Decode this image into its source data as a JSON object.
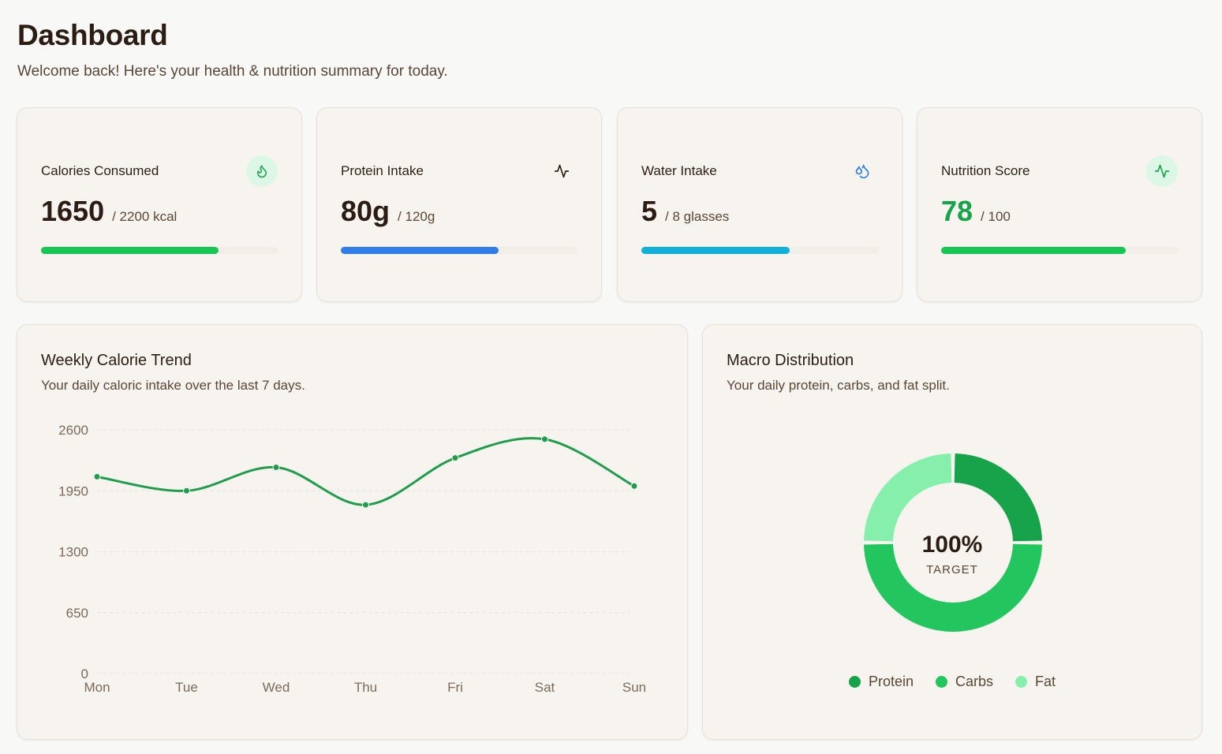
{
  "header": {
    "title": "Dashboard",
    "subtitle": "Welcome back! Here's your health & nutrition summary for today."
  },
  "stats": [
    {
      "label": "Calories Consumed",
      "value": "1650",
      "target": "/ 2200 kcal",
      "progress": 0.75,
      "color": "#16c653",
      "icon": "flame-icon",
      "icon_bg": "#dcf7e5",
      "icon_color": "#16a34a",
      "value_color": "#2b1d14"
    },
    {
      "label": "Protein Intake",
      "value": "80g",
      "target": "/ 120g",
      "progress": 0.667,
      "color": "#2f7de8",
      "icon": "activity-icon",
      "icon_bg": "#f7f4ef",
      "icon_color": "#2b1d14",
      "value_color": "#2b1d14"
    },
    {
      "label": "Water Intake",
      "value": "5",
      "target": "/ 8 glasses",
      "progress": 0.625,
      "color": "#0fb0d8",
      "icon": "droplets-icon",
      "icon_bg": "#f7f4ef",
      "icon_color": "#2f7de8",
      "value_color": "#2b1d14"
    },
    {
      "label": "Nutrition Score",
      "value": "78",
      "target": "/ 100",
      "progress": 0.78,
      "color": "#16c653",
      "icon": "activity-icon",
      "icon_bg": "#dcf7e5",
      "icon_color": "#16a34a",
      "value_color": "#16a34a"
    }
  ],
  "trend": {
    "title": "Weekly Calorie Trend",
    "subtitle": "Your daily caloric intake over the last 7 days."
  },
  "macro": {
    "title": "Macro Distribution",
    "subtitle": "Your daily protein, carbs, and fat split.",
    "center_value": "100%",
    "center_label": "TARGET",
    "segments": [
      {
        "name": "Protein",
        "value": 25,
        "color": "#16a34a"
      },
      {
        "name": "Carbs",
        "value": 50,
        "color": "#22c55e"
      },
      {
        "name": "Fat",
        "value": 25,
        "color": "#86efac"
      }
    ]
  },
  "chart_data": {
    "type": "line",
    "categories": [
      "Mon",
      "Tue",
      "Wed",
      "Thu",
      "Fri",
      "Sat",
      "Sun"
    ],
    "values": [
      2100,
      1950,
      2200,
      1800,
      2300,
      2500,
      2000
    ],
    "ylim": [
      0,
      2600
    ],
    "yticks": [
      "0",
      "650",
      "1300",
      "1950",
      "2600"
    ],
    "line_color": "#1f9d4c",
    "grid": true
  }
}
